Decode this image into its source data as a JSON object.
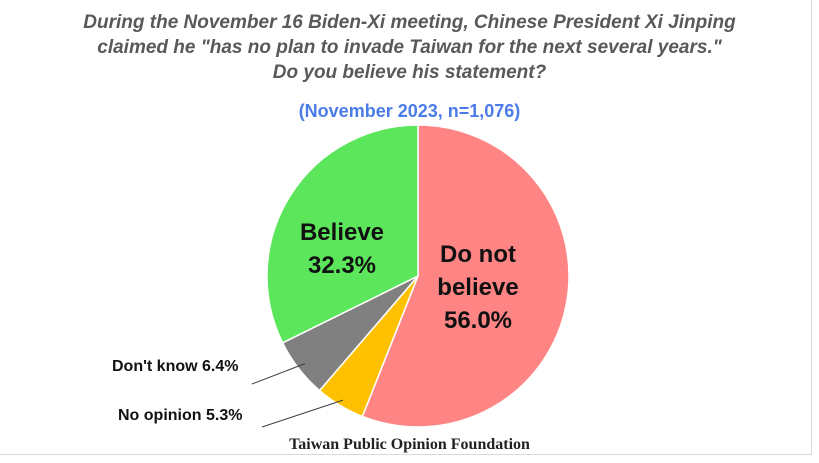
{
  "chart_data": {
    "type": "pie",
    "title_lines": [
      "During the November 16 Biden-Xi meeting, Chinese President Xi Jinping",
      "claimed he \"has no plan to invade Taiwan for the next several years.\"",
      "Do you believe his statement?"
    ],
    "subtitle": "(November 2023, n=1,076)",
    "slices": [
      {
        "label": "Do not believe",
        "label_lines": [
          "Do not",
          "believe"
        ],
        "value": 56.0,
        "value_text": "56.0%",
        "color": "#ff8585"
      },
      {
        "label": "No opinion",
        "value": 5.3,
        "value_text": "No opinion 5.3%",
        "color": "#ffc000"
      },
      {
        "label": "Don't know",
        "value": 6.4,
        "value_text": "Don't know 6.4%",
        "color": "#808080"
      },
      {
        "label": "Believe",
        "label_lines": [
          "Believe"
        ],
        "value": 32.3,
        "value_text": "32.3%",
        "color": "#5ce65c"
      }
    ],
    "source": "Taiwan Public Opinion Foundation"
  }
}
